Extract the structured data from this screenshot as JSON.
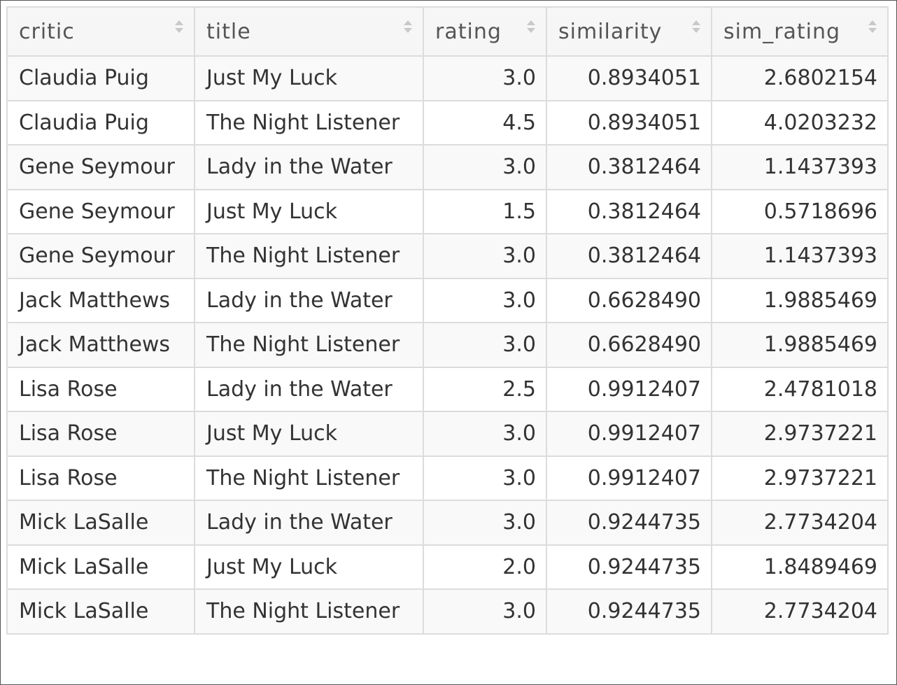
{
  "table": {
    "columns": [
      {
        "key": "critic",
        "label": "critic",
        "numeric": false
      },
      {
        "key": "title",
        "label": "title",
        "numeric": false
      },
      {
        "key": "rating",
        "label": "rating",
        "numeric": true
      },
      {
        "key": "similarity",
        "label": "similarity",
        "numeric": true
      },
      {
        "key": "sim_rating",
        "label": "sim_rating",
        "numeric": true
      }
    ],
    "rows": [
      [
        "Claudia Puig",
        "Just My Luck",
        "3.0",
        "0.8934051",
        "2.6802154"
      ],
      [
        "Claudia Puig",
        "The Night Listener",
        "4.5",
        "0.8934051",
        "4.0203232"
      ],
      [
        "Gene Seymour",
        "Lady in the Water",
        "3.0",
        "0.3812464",
        "1.1437393"
      ],
      [
        "Gene Seymour",
        "Just My Luck",
        "1.5",
        "0.3812464",
        "0.5718696"
      ],
      [
        "Gene Seymour",
        "The Night Listener",
        "3.0",
        "0.3812464",
        "1.1437393"
      ],
      [
        "Jack Matthews",
        "Lady in the Water",
        "3.0",
        "0.6628490",
        "1.9885469"
      ],
      [
        "Jack Matthews",
        "The Night Listener",
        "3.0",
        "0.6628490",
        "1.9885469"
      ],
      [
        "Lisa Rose",
        "Lady in the Water",
        "2.5",
        "0.9912407",
        "2.4781018"
      ],
      [
        "Lisa Rose",
        "Just My Luck",
        "3.0",
        "0.9912407",
        "2.9737221"
      ],
      [
        "Lisa Rose",
        "The Night Listener",
        "3.0",
        "0.9912407",
        "2.9737221"
      ],
      [
        "Mick LaSalle",
        "Lady in the Water",
        "3.0",
        "0.9244735",
        "2.7734204"
      ],
      [
        "Mick LaSalle",
        "Just My Luck",
        "2.0",
        "0.9244735",
        "1.8489469"
      ],
      [
        "Mick LaSalle",
        "The Night Listener",
        "3.0",
        "0.9244735",
        "2.7734204"
      ]
    ]
  },
  "icons": {
    "sort": "sort-both-icon"
  },
  "colors": {
    "border": "#dcdcdc",
    "header_bg": "#f6f6f6",
    "row_odd_bg": "#f9f9f9",
    "row_even_bg": "#ffffff",
    "text": "#333333"
  }
}
